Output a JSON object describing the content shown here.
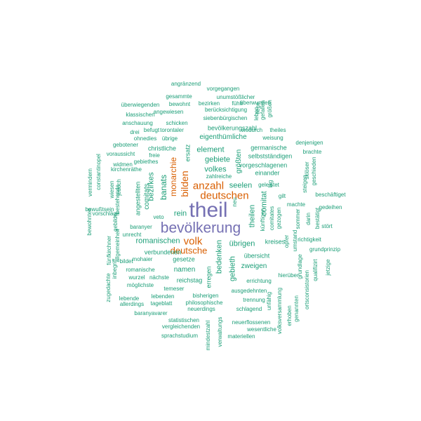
{
  "palette": {
    "tier1": "#7570b3",
    "tier2": "#d95f02",
    "tier3": "#1b9e77"
  },
  "words": [
    {
      "text": "theil",
      "weight": 1
    },
    {
      "text": "bevölkerung",
      "weight": 1
    },
    {
      "text": "deutschen",
      "weight": 2
    },
    {
      "text": "anzahl",
      "weight": 2
    },
    {
      "text": "volk",
      "weight": 2
    },
    {
      "text": "deutsche",
      "weight": 2
    },
    {
      "text": "bilden",
      "weight": 2
    },
    {
      "text": "monarchie",
      "weight": 2
    },
    {
      "text": "banats",
      "weight": 3
    },
    {
      "text": "bezirkes",
      "weight": 3
    },
    {
      "text": "element",
      "weight": 3
    },
    {
      "text": "gebiete",
      "weight": 3
    },
    {
      "text": "volkes",
      "weight": 3
    },
    {
      "text": "seelen",
      "weight": 3
    },
    {
      "text": "theilen",
      "weight": 3
    },
    {
      "text": "comitat",
      "weight": 3
    },
    {
      "text": "romanischen",
      "weight": 3
    },
    {
      "text": "übrigen",
      "weight": 3
    },
    {
      "text": "bedenken",
      "weight": 3
    },
    {
      "text": "gebieth",
      "weight": 3
    },
    {
      "text": "größten",
      "weight": 3
    },
    {
      "text": "einander",
      "weight": 3
    },
    {
      "text": "namen",
      "weight": 3
    },
    {
      "text": "zweigen",
      "weight": 3
    },
    {
      "text": "übersicht",
      "weight": 3
    },
    {
      "text": "rein",
      "weight": 3
    },
    {
      "text": "comitats",
      "weight": 3
    },
    {
      "text": "eigenthümliche",
      "weight": 3
    },
    {
      "text": "verbundenen",
      "weight": 3
    },
    {
      "text": "gesetze",
      "weight": 3
    },
    {
      "text": "vorgeschlagenen",
      "weight": 3
    },
    {
      "text": "selbstständigen",
      "weight": 3
    },
    {
      "text": "germanische",
      "weight": 3
    },
    {
      "text": "christliche",
      "weight": 3
    },
    {
      "text": "ersatz",
      "weight": 3
    },
    {
      "text": "geleistet",
      "weight": 3
    },
    {
      "text": "kreises",
      "weight": 3
    },
    {
      "text": "reichstag",
      "weight": 3
    },
    {
      "text": "erregen",
      "weight": 3
    },
    {
      "text": "angestellten",
      "weight": 3
    },
    {
      "text": "bevölkerungszahl",
      "weight": 3
    },
    {
      "text": "siebenbürgischen",
      "weight": 3
    },
    {
      "text": "torontaler",
      "weight": 3
    },
    {
      "text": "berücksichtigung",
      "weight": 3
    },
    {
      "text": "angewiesen",
      "weight": 3
    },
    {
      "text": "gesammte",
      "weight": 3
    },
    {
      "text": "bewohnt",
      "weight": 3
    },
    {
      "text": "bezirken",
      "weight": 3
    },
    {
      "text": "fühlt",
      "weight": 3
    },
    {
      "text": "überwunden",
      "weight": 3
    },
    {
      "text": "unumstößlicher",
      "weight": 3
    },
    {
      "text": "vorgegangen",
      "weight": 3
    },
    {
      "text": "angränzend",
      "weight": 3
    },
    {
      "text": "überwiegenden",
      "weight": 3
    },
    {
      "text": "klassischen",
      "weight": 3
    },
    {
      "text": "anschauung",
      "weight": 3
    },
    {
      "text": "schicken",
      "weight": 3
    },
    {
      "text": "wodurch",
      "weight": 3
    },
    {
      "text": "theiles",
      "weight": 3
    },
    {
      "text": "weisung",
      "weight": 3
    },
    {
      "text": "drei",
      "weight": 3
    },
    {
      "text": "befugt",
      "weight": 3
    },
    {
      "text": "ohnedies",
      "weight": 3
    },
    {
      "text": "übrige",
      "weight": 3
    },
    {
      "text": "gebotener",
      "weight": 3
    },
    {
      "text": "voraussicht",
      "weight": 3
    },
    {
      "text": "freie",
      "weight": 3
    },
    {
      "text": "widmen",
      "weight": 3
    },
    {
      "text": "gebiethes",
      "weight": 3
    },
    {
      "text": "kirchenräthe",
      "weight": 3
    },
    {
      "text": "denjenigen",
      "weight": 3
    },
    {
      "text": "brachte",
      "weight": 3
    },
    {
      "text": "zahlreiche",
      "weight": 3
    },
    {
      "text": "bewußtsein",
      "weight": 3
    },
    {
      "text": "vorschläge",
      "weight": 3
    },
    {
      "text": "baranyer",
      "weight": 3
    },
    {
      "text": "unrecht",
      "weight": 3
    },
    {
      "text": "beschäftiget",
      "weight": 3
    },
    {
      "text": "gedeihen",
      "weight": 3
    },
    {
      "text": "stört",
      "weight": 3
    },
    {
      "text": "machte",
      "weight": 3
    },
    {
      "text": "künftigen",
      "weight": 3
    },
    {
      "text": "comitates",
      "weight": 3
    },
    {
      "text": "gezogen",
      "weight": 3
    },
    {
      "text": "sommer",
      "weight": 3
    },
    {
      "text": "darin",
      "weight": 3
    },
    {
      "text": "bestätigt",
      "weight": 3
    },
    {
      "text": "gilt",
      "weight": 3
    },
    {
      "text": "mohaier",
      "weight": 3
    },
    {
      "text": "bildet",
      "weight": 3
    },
    {
      "text": "romanische",
      "weight": 3
    },
    {
      "text": "wurzel",
      "weight": 3
    },
    {
      "text": "nächste",
      "weight": 3
    },
    {
      "text": "möglichste",
      "weight": 3
    },
    {
      "text": "temeser",
      "weight": 3
    },
    {
      "text": "lebende",
      "weight": 3
    },
    {
      "text": "lebenden",
      "weight": 3
    },
    {
      "text": "allerdings",
      "weight": 3
    },
    {
      "text": "tageblatt",
      "weight": 3
    },
    {
      "text": "philosophische",
      "weight": 3
    },
    {
      "text": "bisherigen",
      "weight": 3
    },
    {
      "text": "richtigkeit",
      "weight": 3
    },
    {
      "text": "grundprinzip",
      "weight": 3
    },
    {
      "text": "hierüber",
      "weight": 3
    },
    {
      "text": "errichtung",
      "weight": 3
    },
    {
      "text": "ausgedehnten",
      "weight": 3
    },
    {
      "text": "trennung",
      "weight": 3
    },
    {
      "text": "schlagend",
      "weight": 3
    },
    {
      "text": "neuerdings",
      "weight": 3
    },
    {
      "text": "baranyavarer",
      "weight": 3
    },
    {
      "text": "statistischen",
      "weight": 3
    },
    {
      "text": "vergleichenden",
      "weight": 3
    },
    {
      "text": "sprachstudium",
      "weight": 3
    },
    {
      "text": "neuerflossenen",
      "weight": 3
    },
    {
      "text": "wesentliche",
      "weight": 3
    },
    {
      "text": "materiellen",
      "weight": 3
    },
    {
      "text": "verwaltungs",
      "weight": 3
    },
    {
      "text": "mindestzahl",
      "weight": 3
    },
    {
      "text": "unfähig",
      "weight": 3
    },
    {
      "text": "volksversammlung",
      "weight": 3
    },
    {
      "text": "erhoben",
      "weight": 3
    },
    {
      "text": "genannten",
      "weight": 3
    },
    {
      "text": "ortsconsistorien",
      "weight": 3
    },
    {
      "text": "grundlage",
      "weight": 3
    },
    {
      "text": "qualifizirt",
      "weight": 3
    },
    {
      "text": "jetzige",
      "weight": 3
    },
    {
      "text": "opfer",
      "weight": 3
    },
    {
      "text": "umstand",
      "weight": 3
    },
    {
      "text": "steigen",
      "weight": 3
    },
    {
      "text": "sklöser",
      "weight": 3
    },
    {
      "text": "geschieden",
      "weight": 3
    },
    {
      "text": "lag",
      "weight": 3
    },
    {
      "text": "neu",
      "weight": 3
    },
    {
      "text": "veto",
      "weight": 3
    },
    {
      "text": "leben",
      "weight": 3
    },
    {
      "text": "gefallen",
      "weight": 3
    },
    {
      "text": "größen",
      "weight": 3
    },
    {
      "text": "liege",
      "weight": 3
    },
    {
      "text": "vermindern",
      "weight": 3
    },
    {
      "text": "constantinopel",
      "weight": 3
    },
    {
      "text": "wiesen",
      "weight": 3
    },
    {
      "text": "bestehende",
      "weight": 3
    },
    {
      "text": "jedoch",
      "weight": 3
    },
    {
      "text": "gebilde",
      "weight": 3
    },
    {
      "text": "bewohnten",
      "weight": 3
    },
    {
      "text": "fünfkirchner",
      "weight": 3
    },
    {
      "text": "allgemeinheit",
      "weight": 3
    },
    {
      "text": "zugedachte",
      "weight": 3
    },
    {
      "text": "inbegriff",
      "weight": 3
    }
  ]
}
